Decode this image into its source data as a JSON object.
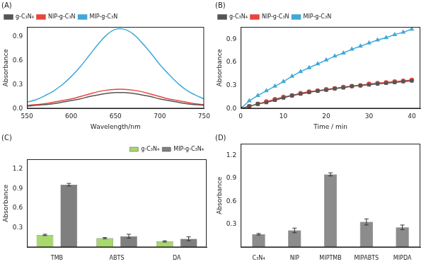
{
  "chart_data": [
    {
      "type": "line",
      "title": "(A)",
      "x_label": "Wavelength/nm",
      "y_label": "Absorbance",
      "x": [
        550,
        560,
        570,
        580,
        590,
        600,
        610,
        620,
        630,
        640,
        650,
        660,
        670,
        680,
        690,
        700,
        710,
        720,
        730,
        740,
        750
      ],
      "series": [
        {
          "name": "g-C₃N₄",
          "color": "#555555",
          "values": [
            0.03,
            0.04,
            0.05,
            0.06,
            0.08,
            0.1,
            0.12,
            0.15,
            0.17,
            0.19,
            0.2,
            0.2,
            0.19,
            0.17,
            0.15,
            0.12,
            0.1,
            0.08,
            0.06,
            0.05,
            0.04
          ]
        },
        {
          "name": "NIP-g-C₃N",
          "color": "#e8453c",
          "values": [
            0.04,
            0.05,
            0.06,
            0.08,
            0.1,
            0.12,
            0.15,
            0.18,
            0.21,
            0.23,
            0.24,
            0.24,
            0.23,
            0.21,
            0.18,
            0.15,
            0.12,
            0.1,
            0.08,
            0.06,
            0.05
          ]
        },
        {
          "name": "MIP-g-C₃N",
          "color": "#3fa9d8",
          "values": [
            0.08,
            0.11,
            0.16,
            0.22,
            0.3,
            0.4,
            0.52,
            0.66,
            0.8,
            0.92,
            0.99,
            0.99,
            0.93,
            0.82,
            0.69,
            0.55,
            0.43,
            0.32,
            0.23,
            0.17,
            0.12
          ]
        }
      ],
      "xlim": [
        550,
        750
      ],
      "xticks": [
        550,
        600,
        650,
        700,
        750
      ],
      "ylim": [
        0,
        1.02
      ],
      "yticks": [
        {
          "value": 0,
          "label": "0.0"
        },
        0.3,
        0.6,
        0.9
      ],
      "grid": false,
      "legend": "top-left"
    },
    {
      "type": "line",
      "title": "(B)",
      "x_label": "Time / min",
      "y_label": "Absorbance",
      "x": [
        0,
        2,
        4,
        6,
        8,
        10,
        12,
        14,
        16,
        18,
        20,
        22,
        24,
        26,
        28,
        30,
        32,
        34,
        36,
        38,
        40
      ],
      "series": [
        {
          "name": "g-C₃N₄",
          "color": "#555555",
          "marker": "square",
          "values": [
            0.0,
            0.03,
            0.06,
            0.08,
            0.11,
            0.14,
            0.17,
            0.19,
            0.21,
            0.23,
            0.24,
            0.26,
            0.27,
            0.29,
            0.3,
            0.31,
            0.32,
            0.33,
            0.34,
            0.35,
            0.36
          ]
        },
        {
          "name": "NIP-g-C₃N",
          "color": "#e8453c",
          "marker": "circle",
          "values": [
            0.0,
            0.03,
            0.06,
            0.09,
            0.12,
            0.15,
            0.17,
            0.2,
            0.22,
            0.23,
            0.25,
            0.26,
            0.28,
            0.29,
            0.3,
            0.32,
            0.33,
            0.34,
            0.35,
            0.36,
            0.37
          ]
        },
        {
          "name": "MIP-g-C₃N",
          "color": "#3fa9d8",
          "marker": "triangle",
          "values": [
            0.0,
            0.1,
            0.17,
            0.23,
            0.29,
            0.35,
            0.42,
            0.48,
            0.53,
            0.58,
            0.63,
            0.68,
            0.72,
            0.77,
            0.81,
            0.85,
            0.89,
            0.92,
            0.96,
            0.99,
            1.03
          ]
        }
      ],
      "xlim": [
        0,
        42
      ],
      "xticks": [
        0,
        10,
        20,
        30,
        40
      ],
      "ylim": [
        0,
        1.06
      ],
      "yticks": [
        {
          "value": 0,
          "label": "0.0"
        },
        0.3,
        0.6,
        0.9
      ],
      "grid": false,
      "legend": "top-left"
    },
    {
      "type": "bar",
      "title": "(C)",
      "y_label": "Absorbance",
      "categories": [
        "TMB",
        "ABTS",
        "DA"
      ],
      "series": [
        {
          "name": "g-C₃N₄",
          "color": "#a8d86e",
          "values": [
            0.19,
            0.14,
            0.09
          ],
          "errors": [
            0.01,
            0.01,
            0.01
          ]
        },
        {
          "name": "MIP-g-C₃N₄",
          "color": "#7f7f7f",
          "values": [
            0.96,
            0.17,
            0.13
          ],
          "errors": [
            0.02,
            0.03,
            0.03
          ]
        }
      ],
      "ylim": [
        0,
        1.35
      ],
      "yticks": [
        0.3,
        0.6,
        0.9,
        1.2
      ],
      "grid": false,
      "legend": "top-right"
    },
    {
      "type": "bar",
      "title": "(D)",
      "y_label": "Absorbance",
      "categories": [
        "C₃N₄",
        "NIP",
        "MIPTMB",
        "MIPABTS",
        "MIPDA"
      ],
      "series": [
        {
          "color": "#8c8c8c",
          "values": [
            0.17,
            0.22,
            0.95,
            0.33,
            0.26
          ],
          "errors": [
            0.01,
            0.03,
            0.02,
            0.04,
            0.03
          ]
        }
      ],
      "ylim": [
        0,
        1.35
      ],
      "yticks": [
        0.3,
        0.6,
        0.9,
        1.2
      ],
      "grid": false
    }
  ]
}
